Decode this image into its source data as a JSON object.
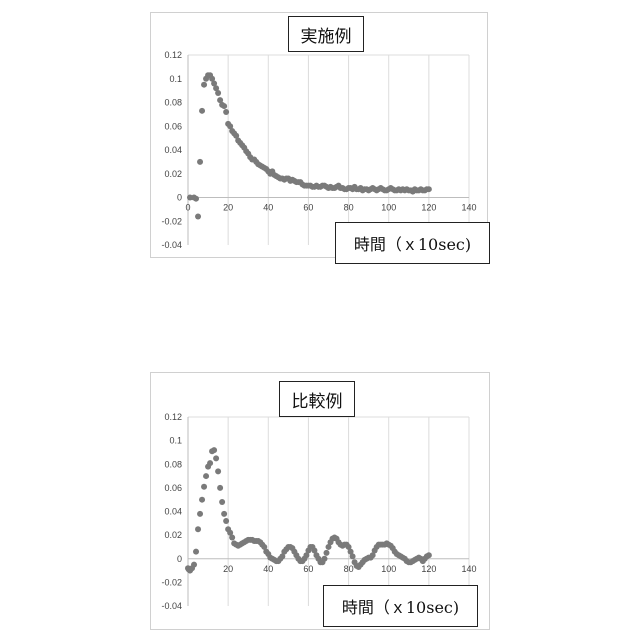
{
  "chart_data": [
    {
      "type": "scatter",
      "title": "実施例",
      "xlabel": "時間（ｘ10sec)",
      "ylabel": "",
      "xlim": [
        0,
        140
      ],
      "ylim": [
        -0.04,
        0.12
      ],
      "xticks": [
        "0",
        "20",
        "40",
        "60",
        "80",
        "100",
        "120",
        "140"
      ],
      "yticks": [
        "0.12",
        "0.1",
        "0.08",
        "0.06",
        "0.04",
        "0.02",
        "0",
        "-0.02",
        "-0.04"
      ],
      "grid": "vertical",
      "legend": "none",
      "color": "#7a7a7a",
      "series": [
        {
          "x": [
            1,
            3,
            4,
            5,
            6,
            7,
            8,
            9,
            10,
            11,
            12,
            13,
            14,
            15,
            16,
            17,
            18,
            19,
            20,
            21,
            22,
            23,
            24,
            25,
            26,
            27,
            28,
            29,
            30,
            31,
            32,
            33,
            34,
            35,
            36,
            37,
            38,
            39,
            40,
            41,
            42,
            43,
            44,
            45,
            46,
            47,
            48,
            49,
            50,
            51,
            52,
            53,
            54,
            55,
            56,
            57,
            58,
            59,
            60,
            61,
            62,
            63,
            64,
            65,
            66,
            67,
            68,
            69,
            70,
            71,
            72,
            73,
            74,
            75,
            76,
            77,
            78,
            79,
            80,
            81,
            82,
            83,
            84,
            85,
            86,
            87,
            88,
            89,
            90,
            91,
            92,
            93,
            94,
            95,
            96,
            97,
            98,
            99,
            100,
            101,
            102,
            103,
            104,
            105,
            106,
            107,
            108,
            109,
            110,
            111,
            112,
            113,
            114,
            115,
            116,
            117,
            118,
            119,
            120
          ],
          "y": [
            0,
            0,
            -0.001,
            -0.016,
            0.03,
            0.073,
            0.095,
            0.1,
            0.103,
            0.103,
            0.1,
            0.096,
            0.092,
            0.088,
            0.082,
            0.078,
            0.077,
            0.072,
            0.062,
            0.06,
            0.056,
            0.054,
            0.052,
            0.048,
            0.046,
            0.044,
            0.042,
            0.039,
            0.037,
            0.034,
            0.032,
            0.032,
            0.03,
            0.028,
            0.027,
            0.026,
            0.025,
            0.024,
            0.022,
            0.02,
            0.022,
            0.019,
            0.018,
            0.017,
            0.016,
            0.016,
            0.015,
            0.016,
            0.016,
            0.014,
            0.015,
            0.014,
            0.013,
            0.013,
            0.013,
            0.011,
            0.01,
            0.01,
            0.01,
            0.01,
            0.009,
            0.009,
            0.01,
            0.009,
            0.009,
            0.01,
            0.01,
            0.009,
            0.008,
            0.009,
            0.008,
            0.008,
            0.009,
            0.01,
            0.008,
            0.008,
            0.007,
            0.007,
            0.008,
            0.008,
            0.007,
            0.009,
            0.007,
            0.007,
            0.008,
            0.006,
            0.007,
            0.007,
            0.006,
            0.007,
            0.008,
            0.007,
            0.006,
            0.007,
            0.008,
            0.007,
            0.006,
            0.006,
            0.007,
            0.008,
            0.007,
            0.006,
            0.006,
            0.007,
            0.006,
            0.007,
            0.006,
            0.007,
            0.006,
            0.006,
            0.005,
            0.007,
            0.006,
            0.006,
            0.007,
            0.006,
            0.006,
            0.007,
            0.007
          ]
        }
      ]
    },
    {
      "type": "scatter",
      "title": "比較例",
      "xlabel": "時間（ｘ10sec)",
      "ylabel": "",
      "xlim": [
        0,
        140
      ],
      "ylim": [
        -0.04,
        0.12
      ],
      "xticks": [
        "0",
        "20",
        "40",
        "60",
        "80",
        "100",
        "120",
        "140"
      ],
      "yticks": [
        "0.12",
        "0.1",
        "0.08",
        "0.06",
        "0.04",
        "0.02",
        "0",
        "-0.02",
        "-0.04"
      ],
      "grid": "vertical",
      "legend": "none",
      "color": "#7a7a7a",
      "series": [
        {
          "x": [
            0,
            1,
            2,
            3,
            4,
            5,
            6,
            7,
            8,
            9,
            10,
            11,
            12,
            13,
            14,
            15,
            16,
            17,
            18,
            19,
            20,
            21,
            22,
            23,
            24,
            25,
            26,
            27,
            28,
            29,
            30,
            31,
            32,
            33,
            34,
            35,
            36,
            37,
            38,
            39,
            40,
            41,
            42,
            43,
            44,
            45,
            46,
            47,
            48,
            49,
            50,
            51,
            52,
            53,
            54,
            55,
            56,
            57,
            58,
            59,
            60,
            61,
            62,
            63,
            64,
            65,
            66,
            67,
            68,
            69,
            70,
            71,
            72,
            73,
            74,
            75,
            76,
            77,
            78,
            79,
            80,
            81,
            82,
            83,
            84,
            85,
            86,
            87,
            88,
            89,
            90,
            91,
            92,
            93,
            94,
            95,
            96,
            97,
            98,
            99,
            100,
            101,
            102,
            103,
            104,
            105,
            106,
            107,
            108,
            109,
            110,
            111,
            112,
            113,
            114,
            115,
            116,
            117,
            118,
            119,
            120
          ],
          "y": [
            -0.008,
            -0.01,
            -0.008,
            -0.005,
            0.006,
            0.025,
            0.038,
            0.05,
            0.061,
            0.07,
            0.078,
            0.081,
            0.091,
            0.092,
            0.085,
            0.074,
            0.06,
            0.048,
            0.038,
            0.032,
            0.025,
            0.022,
            0.018,
            0.013,
            0.012,
            0.011,
            0.012,
            0.013,
            0.014,
            0.015,
            0.016,
            0.016,
            0.016,
            0.015,
            0.015,
            0.015,
            0.014,
            0.012,
            0.01,
            0.006,
            0.004,
            0.001,
            0.0,
            -0.001,
            -0.002,
            -0.002,
            0.0,
            0.002,
            0.006,
            0.008,
            0.01,
            0.01,
            0.009,
            0.006,
            0.003,
            0.0,
            -0.002,
            -0.002,
            0.0,
            0.003,
            0.007,
            0.01,
            0.01,
            0.007,
            0.003,
            0.0,
            -0.003,
            -0.003,
            0.0,
            0.005,
            0.01,
            0.014,
            0.017,
            0.018,
            0.017,
            0.014,
            0.012,
            0.011,
            0.012,
            0.012,
            0.01,
            0.006,
            0.002,
            -0.003,
            -0.006,
            -0.007,
            -0.005,
            -0.003,
            -0.001,
            0.0,
            0.001,
            0.001,
            0.003,
            0.007,
            0.01,
            0.012,
            0.012,
            0.012,
            0.012,
            0.013,
            0.012,
            0.011,
            0.009,
            0.006,
            0.004,
            0.003,
            0.002,
            0.001,
            0.0,
            -0.002,
            -0.003,
            -0.003,
            -0.002,
            -0.001,
            0.0,
            0.001,
            0.0,
            -0.002,
            0.0,
            0.002,
            0.003
          ]
        }
      ]
    }
  ]
}
